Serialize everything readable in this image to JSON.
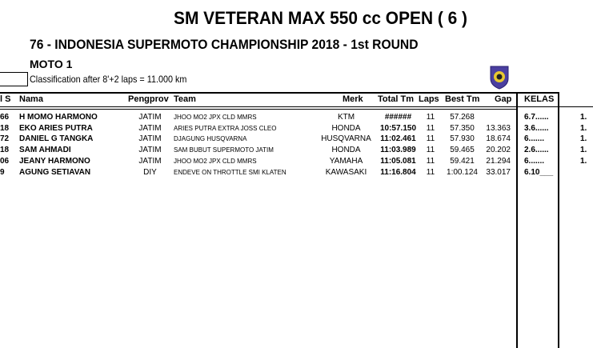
{
  "header": {
    "title": "SM VETERAN MAX 550 cc OPEN ( 6 )",
    "event": "76 - INDONESIA SUPERMOTO CHAMPIONSHIP 2018 - 1st ROUND",
    "session": "MOTO 1",
    "classification": "Classification after 8'+2 laps =    11.000   km"
  },
  "columns": {
    "no": "l S",
    "nama": "Nama",
    "pengprov": "Pengprov",
    "team": "Team",
    "merk": "Merk",
    "total": "Total Tm",
    "laps": "Laps",
    "best": "Best Tm",
    "gap": "Gap",
    "kelas": "KELAS"
  },
  "rows": [
    {
      "no": "66",
      "nama": "H MOMO HARMONO",
      "pengprov": "JATIM",
      "team": "JHOO MO2 JPX CLD MMRS",
      "merk": "KTM",
      "total": "######",
      "laps": "11",
      "best": "57.268",
      "gap": "",
      "kelas": "6.7......",
      "pos": "1."
    },
    {
      "no": "18",
      "nama": "EKO ARIES PUTRA",
      "pengprov": "JATIM",
      "team": "ARIES PUTRA EXTRA JOSS CLEO",
      "merk": "HONDA",
      "total": "10:57.150",
      "laps": "11",
      "best": "57.350",
      "gap": "13.363",
      "kelas": "3.6......",
      "pos": "1."
    },
    {
      "no": "72",
      "nama": "DANIEL G TANGKA",
      "pengprov": "JATIM",
      "team": "DJAGUNG HUSQVARNA",
      "merk": "HUSQVARNA",
      "total": "11:02.461",
      "laps": "11",
      "best": "57.930",
      "gap": "18.674",
      "kelas": "6.......",
      "pos": "1."
    },
    {
      "no": "18",
      "nama": "SAM AHMADI",
      "pengprov": "JATIM",
      "team": "SAM BUBUT SUPERMOTO JATIM",
      "merk": "HONDA",
      "total": "11:03.989",
      "laps": "11",
      "best": "59.465",
      "gap": "20.202",
      "kelas": "2.6......",
      "pos": "1."
    },
    {
      "no": "06",
      "nama": "JEANY HARMONO",
      "pengprov": "JATIM",
      "team": "JHOO MO2 JPX CLD MMRS",
      "merk": "YAMAHA",
      "total": "11:05.081",
      "laps": "11",
      "best": "59.421",
      "gap": "21.294",
      "kelas": "6.......",
      "pos": "1."
    },
    {
      "no": "9",
      "nama": "AGUNG SETIAVAN",
      "pengprov": "DIY",
      "team": "ENDEVE ON THROTTLE SMI KLATEN",
      "merk": "KAWASAKI",
      "total": "11:16.804",
      "laps": "11",
      "best": "1:00.124",
      "gap": "33.017",
      "kelas": "6.10___",
      "pos": ""
    }
  ]
}
